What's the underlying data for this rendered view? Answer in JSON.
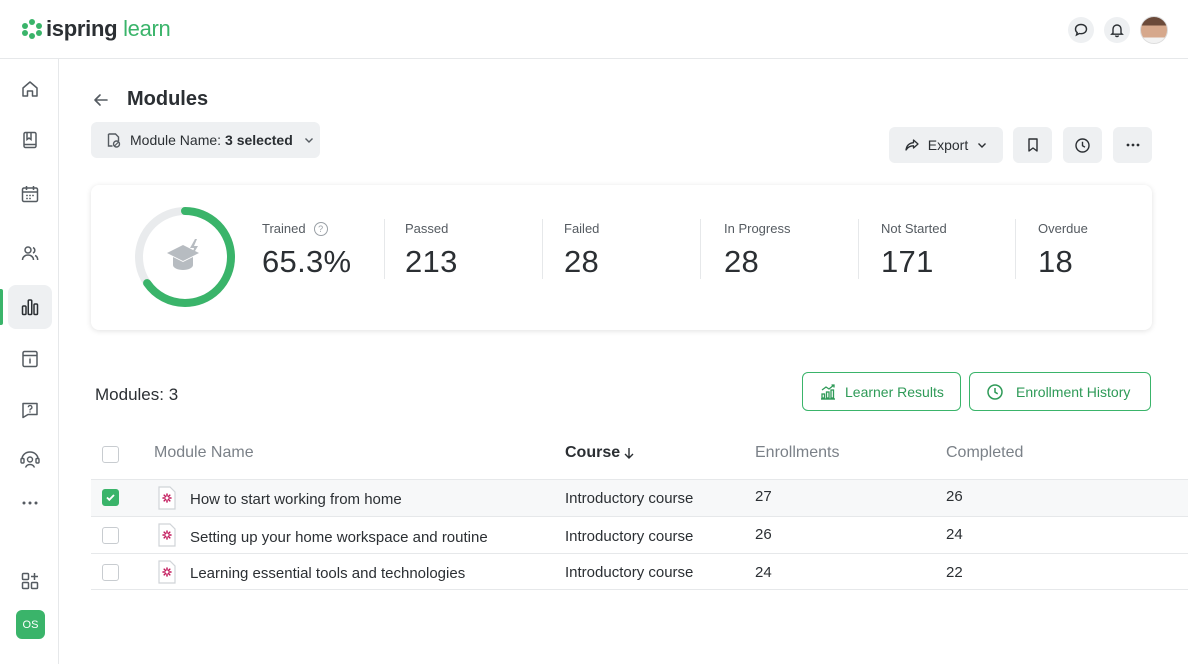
{
  "app": {
    "logo_part1": "ispring",
    "logo_part2": "learn",
    "brand_color": "#3ab46a",
    "user_initials": "OS"
  },
  "sidebar": {
    "items": [
      {
        "icon": "home-icon"
      },
      {
        "icon": "book-icon"
      },
      {
        "icon": "calendar-icon"
      },
      {
        "icon": "users-icon"
      },
      {
        "icon": "reports-icon",
        "active": true
      },
      {
        "icon": "info-board-icon"
      },
      {
        "icon": "question-icon"
      },
      {
        "icon": "support-icon"
      },
      {
        "icon": "more-icon"
      }
    ],
    "bottom_icon": "apps-add-icon"
  },
  "page": {
    "title": "Modules",
    "filter_label": "Module Name:",
    "filter_value": "3 selected",
    "export_label": "Export"
  },
  "stats": {
    "trained_label": "Trained",
    "trained_value": "65.3%",
    "trained_fraction": 0.653,
    "items": [
      {
        "label": "Passed",
        "value": "213"
      },
      {
        "label": "Failed",
        "value": "28"
      },
      {
        "label": "In Progress",
        "value": "28"
      },
      {
        "label": "Not Started",
        "value": "171"
      },
      {
        "label": "Overdue",
        "value": "18"
      }
    ]
  },
  "modules": {
    "count_label": "Modules: 3",
    "learner_results_label": "Learner Results",
    "enrollment_history_label": "Enrollment History"
  },
  "table": {
    "headers": {
      "module_name": "Module Name",
      "course": "Course",
      "enrollments": "Enrollments",
      "completed": "Completed"
    },
    "rows": [
      {
        "name": "How to start working from home",
        "course": "Introductory course",
        "enrollments": "27",
        "completed": "26",
        "checked": true
      },
      {
        "name": "Setting up your home workspace and routine",
        "course": "Introductory course",
        "enrollments": "26",
        "completed": "24",
        "checked": false
      },
      {
        "name": "Learning essential tools and technologies",
        "course": "Introductory course",
        "enrollments": "24",
        "completed": "22",
        "checked": false
      }
    ]
  }
}
